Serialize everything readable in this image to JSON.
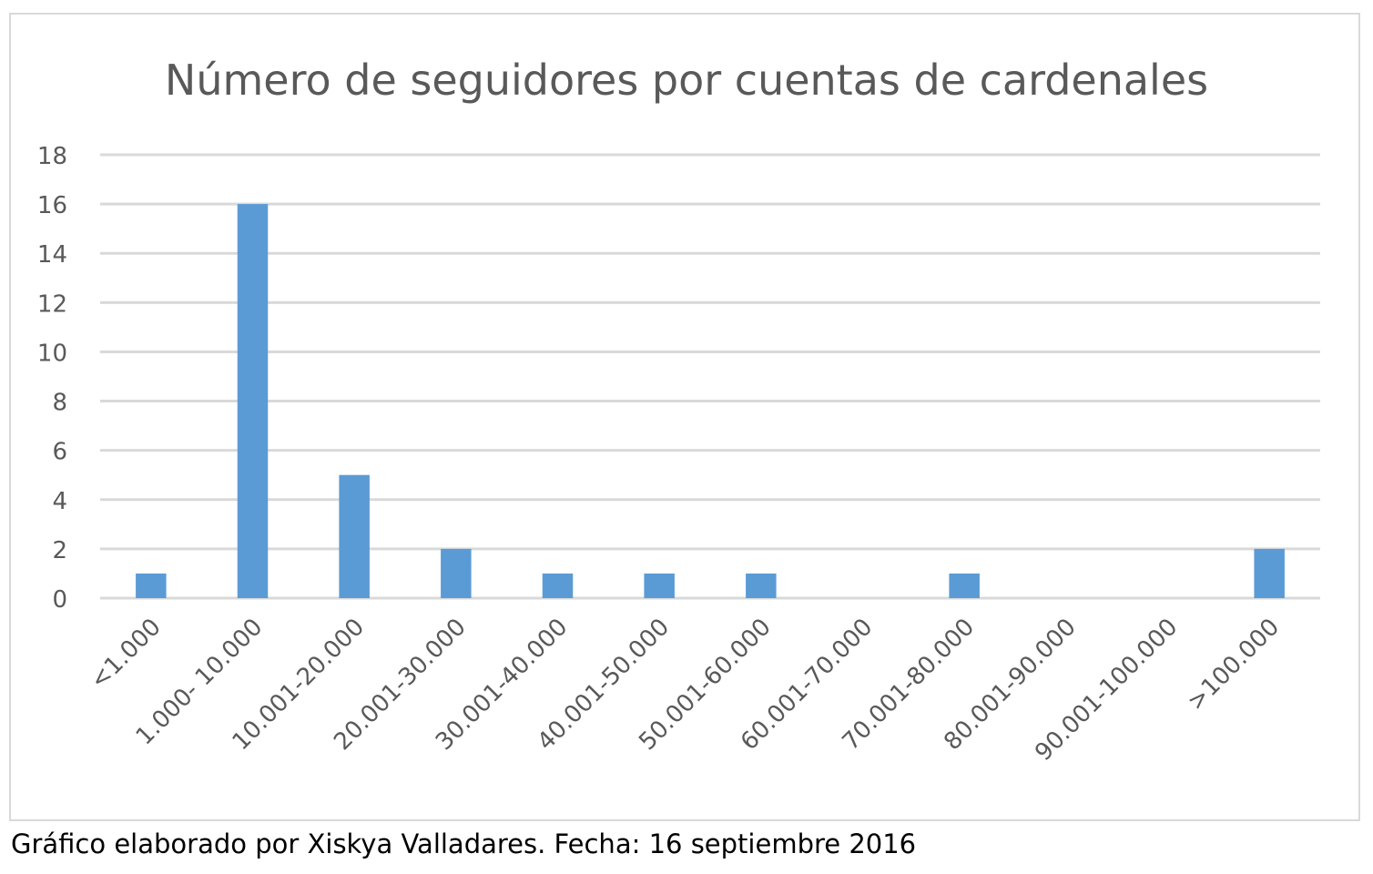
{
  "caption": "Gráfico elaborado por Xiskya Valladares. Fecha: 16 septiembre 2016",
  "colors": {
    "bar": "#5b9bd5",
    "grid": "#d9d9d9",
    "text": "#595959"
  },
  "chart_data": {
    "type": "bar",
    "title": "Número de seguidores por cuentas de cardenales",
    "xlabel": "",
    "ylabel": "",
    "ylim": [
      0,
      18
    ],
    "yticks": [
      0,
      2,
      4,
      6,
      8,
      10,
      12,
      14,
      16,
      18
    ],
    "grid": true,
    "legend": "none",
    "categories": [
      "<1.000",
      "1.000- 10.000",
      "10.001-20.000",
      "20.001-30.000",
      "30.001-40.000",
      "40.001-50.000",
      "50.001-60.000",
      "60.001-70.000",
      "70.001-80.000",
      "80.001-90.000",
      "90.001-100.000",
      ">100.000"
    ],
    "values": [
      1,
      16,
      5,
      2,
      1,
      1,
      1,
      0,
      1,
      0,
      0,
      2
    ]
  }
}
